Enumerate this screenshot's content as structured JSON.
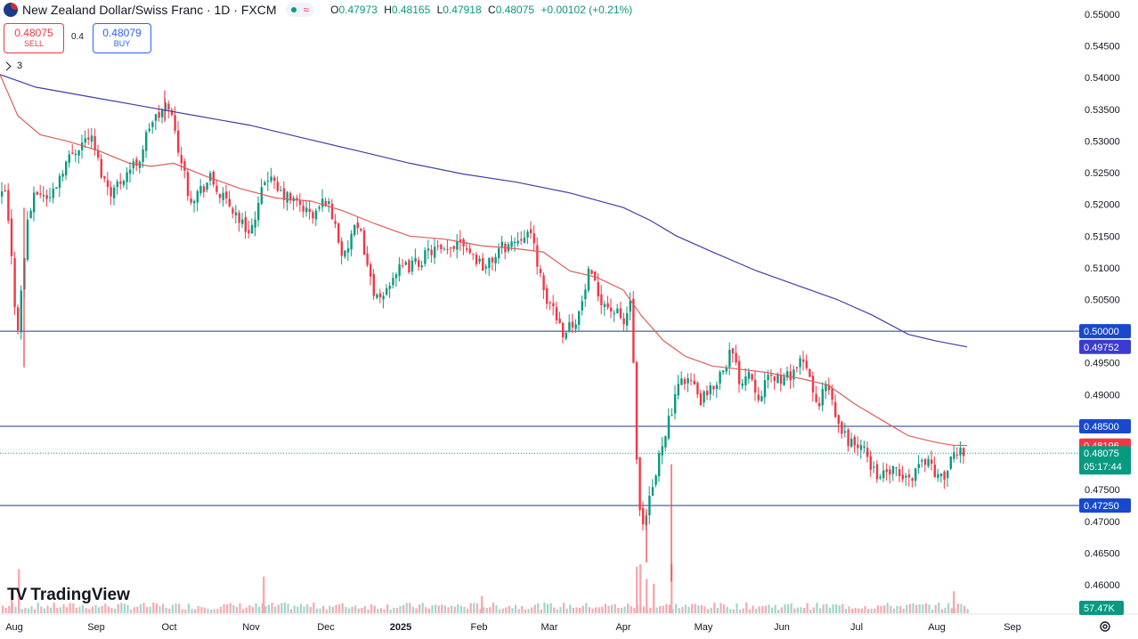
{
  "header": {
    "title": "New Zealand Dollar/Swiss Franc · 1D · FXCM",
    "ohlc": [
      {
        "k": "O",
        "v": "0.47973"
      },
      {
        "k": "H",
        "v": "0.48165"
      },
      {
        "k": "L",
        "v": "0.47918"
      },
      {
        "k": "C",
        "v": "0.48075"
      }
    ],
    "change": "+0.00102 (+0.21%)",
    "flag_icon": "nz-flag-icon",
    "wave_icon": "wave-icon"
  },
  "trade": {
    "sell_price": "0.48075",
    "sell_label": "SELL",
    "spread": "0.4",
    "buy_price": "0.48079",
    "buy_label": "BUY"
  },
  "indicators": {
    "count": "3"
  },
  "brand": {
    "name": "TradingView"
  },
  "colors": {
    "up": "#089981",
    "down": "#f23645",
    "ma_short": "#e05c5c",
    "ma_long": "#3f3fa8",
    "level": "#1e3a8a",
    "price_tag": "#089981"
  },
  "chart_data": {
    "type": "candlestick",
    "symbol": "NZDCHF",
    "timeframe": "1D",
    "ylim": [
      0.4585,
      0.5505
    ],
    "x_ticks": [
      "Aug",
      "Sep",
      "Oct",
      "Nov",
      "Dec",
      "2025",
      "Feb",
      "Mar",
      "Apr",
      "May",
      "Jun",
      "Jul",
      "Aug",
      "Sep"
    ],
    "y_ticks": [
      "0.55000",
      "0.54500",
      "0.54000",
      "0.53500",
      "0.53000",
      "0.52500",
      "0.52000",
      "0.51500",
      "0.51000",
      "0.50500",
      "0.49500",
      "0.49000",
      "0.47500",
      "0.47000",
      "0.46500",
      "0.46000"
    ],
    "close_path": [
      [
        0,
        0.521
      ],
      [
        5,
        0.522
      ],
      [
        12,
        0.511
      ],
      [
        18,
        0.4995
      ],
      [
        24,
        0.508
      ],
      [
        30,
        0.518
      ],
      [
        40,
        0.522
      ],
      [
        55,
        0.521
      ],
      [
        70,
        0.526
      ],
      [
        85,
        0.529
      ],
      [
        100,
        0.531
      ],
      [
        115,
        0.524
      ],
      [
        125,
        0.522
      ],
      [
        140,
        0.525
      ],
      [
        155,
        0.527
      ],
      [
        168,
        0.533
      ],
      [
        178,
        0.534
      ],
      [
        188,
        0.536
      ],
      [
        196,
        0.531
      ],
      [
        204,
        0.526
      ],
      [
        212,
        0.521
      ],
      [
        222,
        0.522
      ],
      [
        235,
        0.524
      ],
      [
        248,
        0.521
      ],
      [
        262,
        0.519
      ],
      [
        275,
        0.516
      ],
      [
        285,
        0.517
      ],
      [
        298,
        0.525
      ],
      [
        310,
        0.522
      ],
      [
        322,
        0.521
      ],
      [
        335,
        0.52
      ],
      [
        350,
        0.518
      ],
      [
        365,
        0.521
      ],
      [
        375,
        0.517
      ],
      [
        385,
        0.511
      ],
      [
        395,
        0.516
      ],
      [
        405,
        0.515
      ],
      [
        415,
        0.508
      ],
      [
        425,
        0.504
      ],
      [
        440,
        0.509
      ],
      [
        455,
        0.51
      ],
      [
        470,
        0.511
      ],
      [
        485,
        0.513
      ],
      [
        500,
        0.512
      ],
      [
        515,
        0.515
      ],
      [
        530,
        0.512
      ],
      [
        545,
        0.51
      ],
      [
        560,
        0.513
      ],
      [
        575,
        0.514
      ],
      [
        590,
        0.516
      ],
      [
        600,
        0.513
      ],
      [
        610,
        0.505
      ],
      [
        620,
        0.504
      ],
      [
        630,
        0.5
      ],
      [
        640,
        0.501
      ],
      [
        650,
        0.503
      ],
      [
        660,
        0.509
      ],
      [
        670,
        0.506
      ],
      [
        680,
        0.504
      ],
      [
        690,
        0.503
      ],
      [
        700,
        0.501
      ],
      [
        707,
        0.505
      ],
      [
        710,
        0.496
      ],
      [
        714,
        0.478
      ],
      [
        718,
        0.47
      ],
      [
        722,
        0.468
      ],
      [
        726,
        0.472
      ],
      [
        730,
        0.474
      ],
      [
        735,
        0.477
      ],
      [
        740,
        0.481
      ],
      [
        745,
        0.484
      ],
      [
        755,
        0.488
      ],
      [
        765,
        0.493
      ],
      [
        775,
        0.492
      ],
      [
        785,
        0.489
      ],
      [
        795,
        0.49
      ],
      [
        810,
        0.494
      ],
      [
        820,
        0.497
      ],
      [
        830,
        0.492
      ],
      [
        840,
        0.494
      ],
      [
        850,
        0.49
      ],
      [
        860,
        0.492
      ],
      [
        870,
        0.493
      ],
      [
        880,
        0.492
      ],
      [
        890,
        0.494
      ],
      [
        900,
        0.495
      ],
      [
        910,
        0.492
      ],
      [
        918,
        0.487
      ],
      [
        925,
        0.492
      ],
      [
        932,
        0.489
      ],
      [
        940,
        0.485
      ],
      [
        950,
        0.483
      ],
      [
        960,
        0.482
      ],
      [
        970,
        0.481
      ],
      [
        980,
        0.478
      ],
      [
        990,
        0.477
      ],
      [
        1000,
        0.478
      ],
      [
        1010,
        0.477
      ],
      [
        1020,
        0.4765
      ],
      [
        1030,
        0.479
      ],
      [
        1040,
        0.48
      ],
      [
        1048,
        0.478
      ],
      [
        1055,
        0.4765
      ],
      [
        1062,
        0.478
      ],
      [
        1070,
        0.48
      ],
      [
        1078,
        0.4815
      ],
      [
        1086,
        0.48075
      ]
    ],
    "ma_short_path": [
      [
        0,
        0.5405
      ],
      [
        20,
        0.534
      ],
      [
        45,
        0.531
      ],
      [
        75,
        0.53
      ],
      [
        110,
        0.5285
      ],
      [
        145,
        0.5265
      ],
      [
        170,
        0.526
      ],
      [
        195,
        0.5265
      ],
      [
        230,
        0.5245
      ],
      [
        270,
        0.5225
      ],
      [
        310,
        0.521
      ],
      [
        350,
        0.5205
      ],
      [
        385,
        0.519
      ],
      [
        420,
        0.517
      ],
      [
        460,
        0.515
      ],
      [
        500,
        0.5145
      ],
      [
        540,
        0.5135
      ],
      [
        580,
        0.513
      ],
      [
        610,
        0.5125
      ],
      [
        640,
        0.5095
      ],
      [
        670,
        0.5085
      ],
      [
        700,
        0.5065
      ],
      [
        720,
        0.5025
      ],
      [
        745,
        0.4985
      ],
      [
        770,
        0.496
      ],
      [
        800,
        0.4945
      ],
      [
        830,
        0.494
      ],
      [
        860,
        0.4935
      ],
      [
        900,
        0.4925
      ],
      [
        930,
        0.4915
      ],
      [
        960,
        0.4885
      ],
      [
        990,
        0.486
      ],
      [
        1020,
        0.4835
      ],
      [
        1050,
        0.4825
      ],
      [
        1070,
        0.482
      ],
      [
        1086,
        0.48196
      ]
    ],
    "ma_long_path": [
      [
        0,
        0.5405
      ],
      [
        40,
        0.5385
      ],
      [
        100,
        0.537
      ],
      [
        160,
        0.5355
      ],
      [
        220,
        0.534
      ],
      [
        280,
        0.5325
      ],
      [
        340,
        0.5305
      ],
      [
        400,
        0.5285
      ],
      [
        460,
        0.5265
      ],
      [
        520,
        0.5248
      ],
      [
        580,
        0.5235
      ],
      [
        640,
        0.5218
      ],
      [
        700,
        0.5195
      ],
      [
        730,
        0.5175
      ],
      [
        760,
        0.515
      ],
      [
        800,
        0.5125
      ],
      [
        850,
        0.5095
      ],
      [
        900,
        0.507
      ],
      [
        940,
        0.505
      ],
      [
        980,
        0.5025
      ],
      [
        1020,
        0.4995
      ],
      [
        1050,
        0.4985
      ],
      [
        1086,
        0.49752
      ]
    ],
    "levels": [
      {
        "value": 0.5,
        "label": "0.50000"
      },
      {
        "value": 0.485,
        "label": "0.48500"
      },
      {
        "value": 0.4725,
        "label": "0.47250"
      }
    ],
    "current": {
      "price": 0.48075,
      "label": "0.48075",
      "countdown": "05:17:44",
      "ma_short_label": "0.48196",
      "ma_short_value": 0.48196,
      "ma_long_label": "0.49752",
      "ma_long_value": 0.49752
    },
    "volume": {
      "last": "57.47K",
      "spikes": [
        {
          "x": 12,
          "rel": 0.45
        },
        {
          "x": 20,
          "rel": 0.9
        },
        {
          "x": 295,
          "rel": 0.75
        },
        {
          "x": 540,
          "rel": 0.35
        },
        {
          "x": 714,
          "rel": 0.95
        },
        {
          "x": 718,
          "rel": 1.0
        },
        {
          "x": 725,
          "rel": 0.7
        },
        {
          "x": 733,
          "rel": 0.6
        },
        {
          "x": 753,
          "rel": 1.0
        },
        {
          "x": 1070,
          "rel": 0.45
        }
      ]
    },
    "wicks": [
      {
        "x": 27,
        "low": 0.4943,
        "high": 0.5195
      },
      {
        "x": 726,
        "low": 0.4635,
        "high": 0.472
      },
      {
        "x": 754,
        "low": 0.4605,
        "high": 0.479
      },
      {
        "x": 185,
        "low": 0.533,
        "high": 0.538
      }
    ]
  }
}
